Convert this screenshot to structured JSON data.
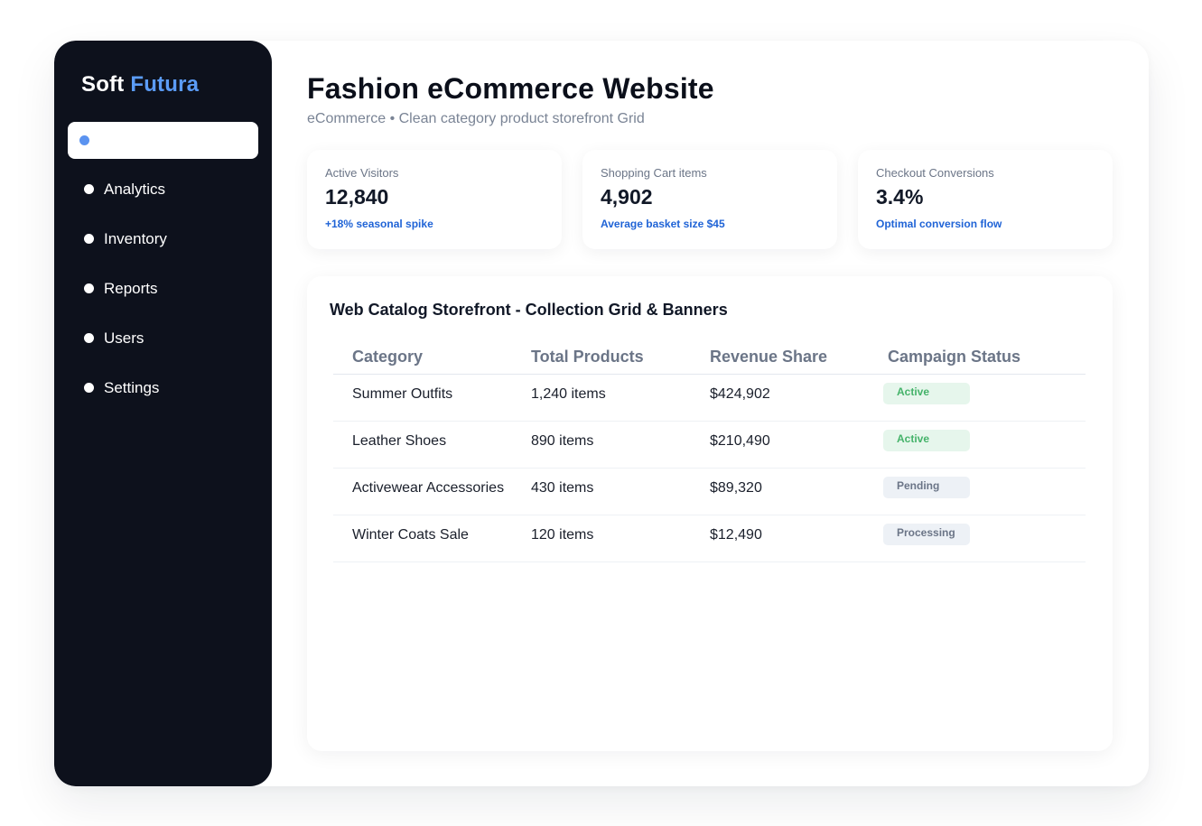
{
  "brand": {
    "name_first": "Soft",
    "name_accent": "Futura"
  },
  "sidebar": {
    "items": [
      {
        "label": "",
        "active": true
      },
      {
        "label": "Analytics"
      },
      {
        "label": "Inventory"
      },
      {
        "label": "Reports"
      },
      {
        "label": "Users"
      },
      {
        "label": "Settings"
      }
    ]
  },
  "header": {
    "title": "Fashion eCommerce Website",
    "subtitle": "eCommerce • Clean category product storefront Grid"
  },
  "kpis": [
    {
      "label": "Active Visitors",
      "value": "12,840",
      "note": "+18% seasonal spike"
    },
    {
      "label": "Shopping Cart items",
      "value": "4,902",
      "note": "Average basket size $45"
    },
    {
      "label": "Checkout Conversions",
      "value": "3.4%",
      "note": "Optimal conversion flow"
    }
  ],
  "panel": {
    "title": "Web Catalog Storefront - Collection Grid & Banners",
    "columns": [
      "Category",
      "Total Products",
      "Revenue Share",
      "Campaign Status"
    ],
    "rows": [
      {
        "category": "Summer Outfits",
        "products": "1,240 items",
        "revenue": "$424,902",
        "status": "Active"
      },
      {
        "category": "Leather Shoes",
        "products": "890 items",
        "revenue": "$210,490",
        "status": "Active"
      },
      {
        "category": "Activewear Accessories",
        "products": "430 items",
        "revenue": "$89,320",
        "status": "Pending"
      },
      {
        "category": "Winter Coats Sale",
        "products": "120 items",
        "revenue": "$12,490",
        "status": "Processing"
      }
    ]
  },
  "colors": {
    "sidebar_bg": "#0d111c",
    "accent": "#5b9cf6",
    "note_blue": "#1f63d6",
    "active_badge_bg": "#e6f6ec",
    "active_badge_text": "#45b36a",
    "neutral_badge_bg": "#edf1f6"
  }
}
